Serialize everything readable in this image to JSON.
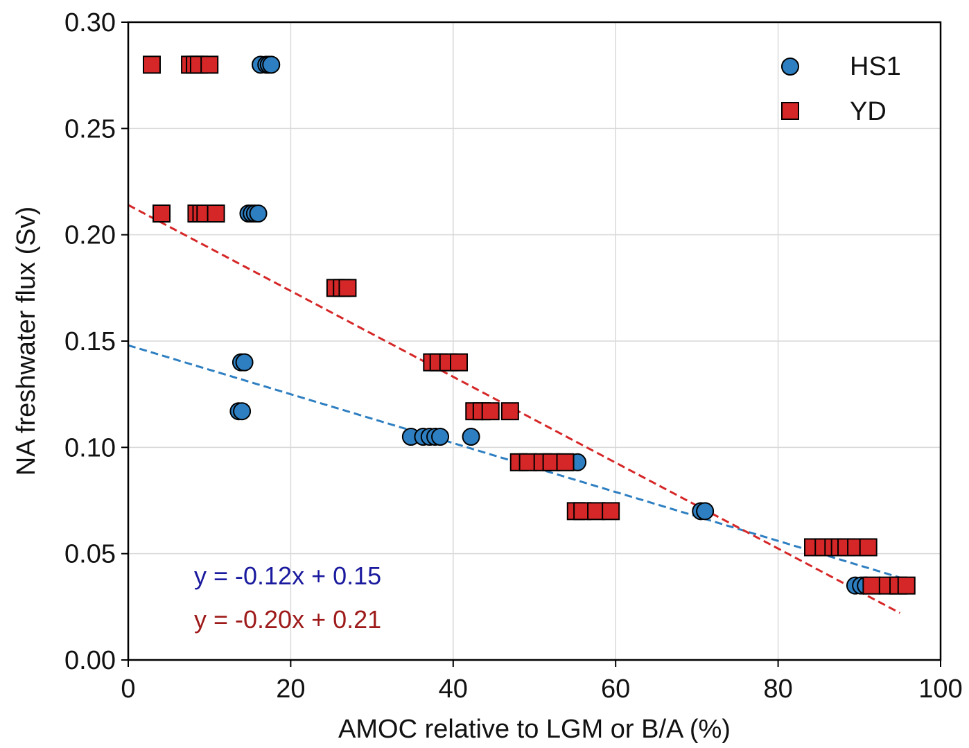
{
  "chart_data": {
    "type": "scatter",
    "title": "",
    "xlabel": "AMOC relative to LGM or B/A (%)",
    "ylabel": "NA freshwater flux (Sv)",
    "xlim": [
      0,
      100
    ],
    "ylim": [
      0,
      0.3
    ],
    "x_ticks": [
      0,
      20,
      40,
      60,
      80,
      100
    ],
    "x_tick_labels": [
      "0",
      "20",
      "40",
      "60",
      "80",
      "100"
    ],
    "y_ticks": [
      0,
      0.05,
      0.1,
      0.15,
      0.2,
      0.25,
      0.3
    ],
    "y_tick_labels": [
      "0.00",
      "0.05",
      "0.10",
      "0.15",
      "0.20",
      "0.25",
      "0.30"
    ],
    "grid": true,
    "legend_position": "top-right",
    "series": [
      {
        "name": "HS1",
        "marker": "circle",
        "color": "#2e7fc1",
        "points": [
          [
            16.3,
            0.28
          ],
          [
            17.0,
            0.28
          ],
          [
            17.3,
            0.28
          ],
          [
            17.6,
            0.28
          ],
          [
            14.8,
            0.21
          ],
          [
            15.2,
            0.21
          ],
          [
            15.6,
            0.21
          ],
          [
            16.0,
            0.21
          ],
          [
            13.9,
            0.14
          ],
          [
            14.3,
            0.14
          ],
          [
            13.6,
            0.117
          ],
          [
            14.0,
            0.117
          ],
          [
            34.8,
            0.105
          ],
          [
            36.3,
            0.105
          ],
          [
            37.1,
            0.105
          ],
          [
            37.8,
            0.105
          ],
          [
            38.4,
            0.105
          ],
          [
            42.2,
            0.105
          ],
          [
            55.3,
            0.093
          ],
          [
            70.5,
            0.07
          ],
          [
            71.0,
            0.07
          ],
          [
            89.5,
            0.035
          ],
          [
            90.2,
            0.035
          ],
          [
            90.8,
            0.035
          ]
        ]
      },
      {
        "name": "YD",
        "marker": "square",
        "color": "#d62728",
        "points": [
          [
            2.9,
            0.28
          ],
          [
            7.6,
            0.28
          ],
          [
            8.2,
            0.28
          ],
          [
            8.7,
            0.28
          ],
          [
            10.0,
            0.28
          ],
          [
            4.1,
            0.21
          ],
          [
            8.4,
            0.21
          ],
          [
            9.0,
            0.21
          ],
          [
            9.5,
            0.21
          ],
          [
            10.8,
            0.21
          ],
          [
            25.5,
            0.175
          ],
          [
            26.3,
            0.175
          ],
          [
            27.0,
            0.175
          ],
          [
            37.4,
            0.14
          ],
          [
            38.2,
            0.14
          ],
          [
            39.4,
            0.14
          ],
          [
            40.7,
            0.14
          ],
          [
            42.6,
            0.117
          ],
          [
            43.5,
            0.117
          ],
          [
            44.6,
            0.117
          ],
          [
            47.0,
            0.117
          ],
          [
            48.1,
            0.093
          ],
          [
            49.2,
            0.093
          ],
          [
            51.0,
            0.093
          ],
          [
            52.1,
            0.093
          ],
          [
            53.8,
            0.093
          ],
          [
            55.1,
            0.07
          ],
          [
            55.9,
            0.07
          ],
          [
            57.6,
            0.07
          ],
          [
            59.4,
            0.07
          ],
          [
            84.3,
            0.053
          ],
          [
            85.6,
            0.053
          ],
          [
            86.8,
            0.053
          ],
          [
            87.6,
            0.053
          ],
          [
            88.4,
            0.053
          ],
          [
            89.6,
            0.053
          ],
          [
            91.1,
            0.053
          ],
          [
            91.5,
            0.035
          ],
          [
            93.5,
            0.035
          ],
          [
            94.8,
            0.035
          ],
          [
            95.8,
            0.035
          ]
        ]
      }
    ],
    "fit_lines": [
      {
        "series": "HS1",
        "color": "#2e7fc1",
        "line_style": "dashed",
        "slope_per_pct": -0.00115,
        "intercept": 0.148,
        "x_range": [
          0,
          95
        ]
      },
      {
        "series": "YD",
        "color": "#d62728",
        "line_style": "dashed",
        "slope_per_pct": -0.00202,
        "intercept": 0.214,
        "x_range": [
          0,
          95
        ]
      }
    ],
    "annotations": [
      {
        "text": "y = -0.12x + 0.15",
        "color": "#1a1a9e"
      },
      {
        "text": "y = -0.20x + 0.21",
        "color": "#9e1a1a"
      }
    ]
  }
}
